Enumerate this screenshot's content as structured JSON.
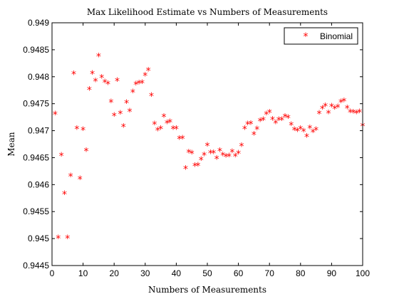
{
  "chart_data": {
    "type": "scatter",
    "title": "Max Likelihood Estimate vs Numbers of Measurements",
    "xlabel": "Numbers of Measurements",
    "ylabel": "Mean",
    "xlim": [
      0,
      100
    ],
    "ylim": [
      0.9445,
      0.949
    ],
    "xticks": [
      0,
      10,
      20,
      30,
      40,
      50,
      60,
      70,
      80,
      90,
      100
    ],
    "yticks": [
      0.9445,
      0.945,
      0.9455,
      0.946,
      0.9465,
      0.947,
      0.9475,
      0.948,
      0.9485,
      0.949
    ],
    "ytick_labels": [
      "0.9445",
      "0.945",
      "0.9455",
      "0.946",
      "0.9465",
      "0.947",
      "0.9475",
      "0.948",
      "0.9485",
      "0.949"
    ],
    "grid": false,
    "legend_position": "top-right",
    "marker": "*",
    "series": [
      {
        "name": "Binomial",
        "color": "#ff0000",
        "points": [
          [
            1,
            0.9473
          ],
          [
            2,
            0.945
          ],
          [
            3,
            0.94653
          ],
          [
            4,
            0.94582
          ],
          [
            5,
            0.945
          ],
          [
            6,
            0.94615
          ],
          [
            7,
            0.94804
          ],
          [
            8,
            0.94703
          ],
          [
            9,
            0.9461
          ],
          [
            10,
            0.94701
          ],
          [
            11,
            0.94662
          ],
          [
            12,
            0.94775
          ],
          [
            13,
            0.94805
          ],
          [
            14,
            0.94791
          ],
          [
            15,
            0.94837
          ],
          [
            16,
            0.94798
          ],
          [
            17,
            0.94789
          ],
          [
            18,
            0.94786
          ],
          [
            19,
            0.94752
          ],
          [
            20,
            0.94727
          ],
          [
            21,
            0.94792
          ],
          [
            22,
            0.94731
          ],
          [
            23,
            0.94707
          ],
          [
            24,
            0.94751
          ],
          [
            25,
            0.94735
          ],
          [
            26,
            0.94771
          ],
          [
            27,
            0.94785
          ],
          [
            28,
            0.94787
          ],
          [
            29,
            0.94788
          ],
          [
            30,
            0.94802
          ],
          [
            31,
            0.94811
          ],
          [
            32,
            0.94764
          ],
          [
            33,
            0.94711
          ],
          [
            34,
            0.947
          ],
          [
            35,
            0.94703
          ],
          [
            36,
            0.94725
          ],
          [
            37,
            0.94713
          ],
          [
            38,
            0.94715
          ],
          [
            39,
            0.94703
          ],
          [
            40,
            0.94703
          ],
          [
            41,
            0.94684
          ],
          [
            42,
            0.94685
          ],
          [
            43,
            0.94629
          ],
          [
            44,
            0.94659
          ],
          [
            45,
            0.94657
          ],
          [
            46,
            0.94634
          ],
          [
            47,
            0.94635
          ],
          [
            48,
            0.94645
          ],
          [
            49,
            0.94654
          ],
          [
            50,
            0.94672
          ],
          [
            51,
            0.94658
          ],
          [
            52,
            0.94658
          ],
          [
            53,
            0.94647
          ],
          [
            54,
            0.94662
          ],
          [
            55,
            0.94654
          ],
          [
            56,
            0.94651
          ],
          [
            57,
            0.94652
          ],
          [
            58,
            0.9466
          ],
          [
            59,
            0.94652
          ],
          [
            60,
            0.94657
          ],
          [
            61,
            0.94671
          ],
          [
            62,
            0.94703
          ],
          [
            63,
            0.94711
          ],
          [
            64,
            0.94712
          ],
          [
            65,
            0.94692
          ],
          [
            66,
            0.94702
          ],
          [
            67,
            0.94717
          ],
          [
            68,
            0.94719
          ],
          [
            69,
            0.9473
          ],
          [
            70,
            0.94733
          ],
          [
            71,
            0.9472
          ],
          [
            72,
            0.94713
          ],
          [
            73,
            0.94719
          ],
          [
            74,
            0.94719
          ],
          [
            75,
            0.94725
          ],
          [
            76,
            0.94723
          ],
          [
            77,
            0.9471
          ],
          [
            78,
            0.94701
          ],
          [
            79,
            0.94699
          ],
          [
            80,
            0.94703
          ],
          [
            81,
            0.94698
          ],
          [
            82,
            0.94688
          ],
          [
            83,
            0.94704
          ],
          [
            84,
            0.94697
          ],
          [
            85,
            0.94701
          ],
          [
            86,
            0.94731
          ],
          [
            87,
            0.9474
          ],
          [
            88,
            0.94745
          ],
          [
            89,
            0.94732
          ],
          [
            90,
            0.94744
          ],
          [
            91,
            0.9474
          ],
          [
            92,
            0.94743
          ],
          [
            93,
            0.94752
          ],
          [
            94,
            0.94754
          ],
          [
            95,
            0.94741
          ],
          [
            96,
            0.94734
          ],
          [
            97,
            0.94733
          ],
          [
            98,
            0.94732
          ],
          [
            99,
            0.94734
          ],
          [
            100,
            0.94708
          ]
        ]
      }
    ]
  }
}
